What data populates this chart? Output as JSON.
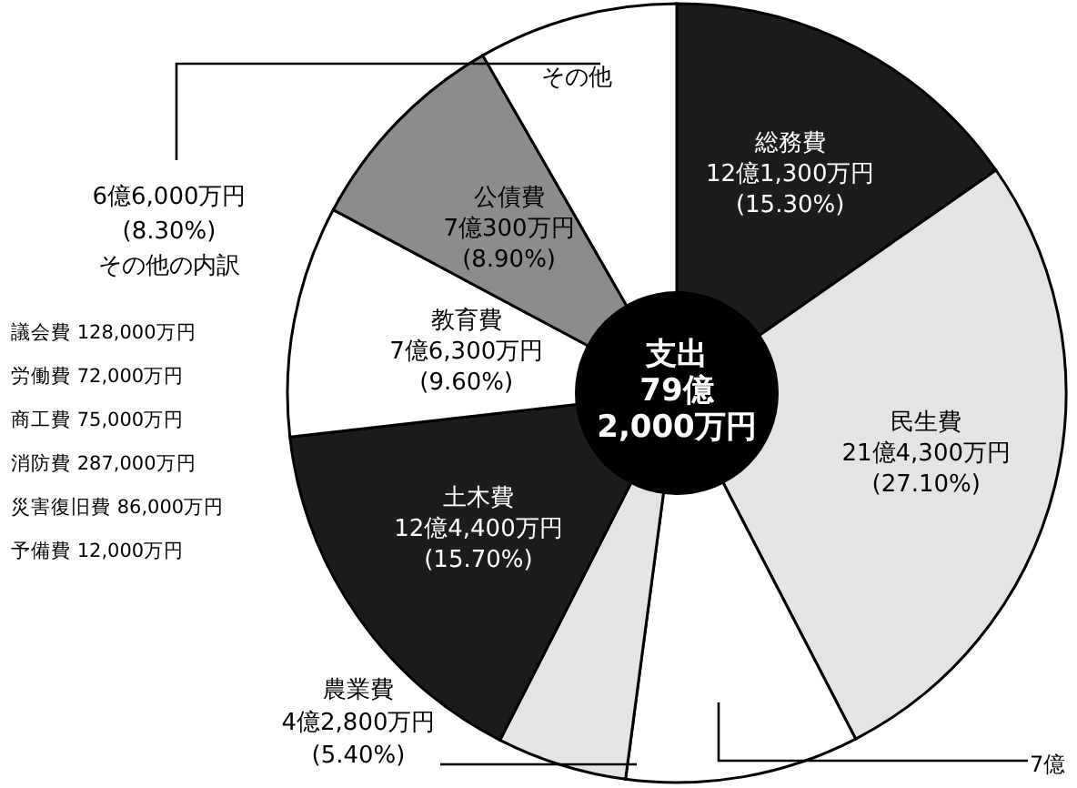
{
  "chart_data": {
    "type": "donut",
    "title": "支出\n79億\n2,000万円",
    "categories": [
      "総務費",
      "民生費",
      null,
      "農業費",
      "土木費",
      "教育費",
      "公債費",
      "その他"
    ],
    "values": [
      15.3,
      27.1,
      9.7,
      5.4,
      15.7,
      9.6,
      8.9,
      8.3
    ],
    "colors": [
      "#1c1c1c",
      "#e4e4e4",
      "#ffffff",
      "#e4e4e4",
      "#1c1c1c",
      "#ffffff",
      "#8c8c8c",
      "#ffffff"
    ],
    "value_labels": [
      "12億1,300万円\n(15.30%)",
      "21億4,300万円\n(27.10%)",
      null,
      "4億2,800万円\n(5.40%)",
      "12億4,400万円\n(15.70%)",
      "7億6,300万円\n(9.60%)",
      "7億300万円\n(8.90%)",
      "6億6,000万円\n(8.30%)"
    ],
    "annotations": [
      "7億",
      "その他の内訳",
      "議会費 128,000万円",
      "労働費 72,000万円",
      "商工費 75,000万円",
      "消防費 287,000万円",
      "災害復旧費 86,000万円",
      "予備費 12,000万円"
    ]
  }
}
